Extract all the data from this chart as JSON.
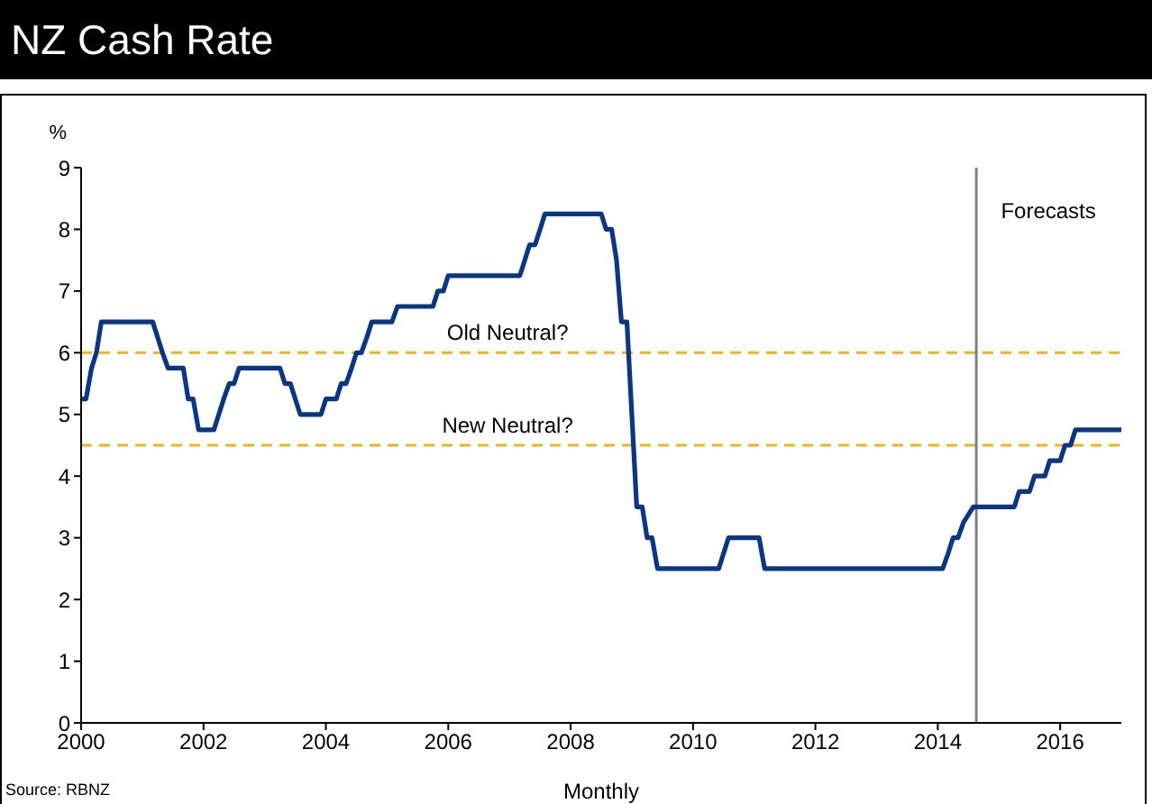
{
  "chart_data": {
    "type": "line",
    "title": "NZ Cash Rate",
    "xlabel": "Monthly",
    "ylabel": "%",
    "annotations": [
      "Source: RBNZ"
    ],
    "x": [
      2000.0,
      2000.08,
      2000.17,
      2000.25,
      2000.33,
      2001.17,
      2001.25,
      2001.33,
      2001.42,
      2001.67,
      2001.75,
      2001.83,
      2001.92,
      2002.17,
      2002.25,
      2002.33,
      2002.42,
      2002.5,
      2002.58,
      2003.25,
      2003.33,
      2003.42,
      2003.5,
      2003.58,
      2003.92,
      2004.0,
      2004.17,
      2004.25,
      2004.33,
      2004.42,
      2004.5,
      2004.58,
      2004.67,
      2004.75,
      2005.08,
      2005.17,
      2005.75,
      2005.83,
      2005.92,
      2006.0,
      2007.17,
      2007.25,
      2007.33,
      2007.42,
      2007.5,
      2007.58,
      2008.5,
      2008.58,
      2008.67,
      2008.75,
      2008.83,
      2008.92,
      2009.0,
      2009.08,
      2009.17,
      2009.25,
      2009.33,
      2009.42,
      2010.42,
      2010.5,
      2010.58,
      2011.08,
      2011.17,
      2014.08,
      2014.17,
      2014.25,
      2014.33,
      2014.42,
      2014.58,
      2015.25,
      2015.33,
      2015.5,
      2015.58,
      2015.75,
      2015.83,
      2016.0,
      2016.08,
      2016.17,
      2016.25,
      2017.0
    ],
    "series": [
      {
        "color": "#0a3682",
        "values": [
          5.25,
          5.25,
          5.75,
          6.0,
          6.5,
          6.5,
          6.25,
          6.0,
          5.75,
          5.75,
          5.25,
          5.25,
          4.75,
          4.75,
          5.0,
          5.25,
          5.5,
          5.5,
          5.75,
          5.75,
          5.5,
          5.5,
          5.25,
          5.0,
          5.0,
          5.25,
          5.25,
          5.5,
          5.5,
          5.75,
          6.0,
          6.0,
          6.25,
          6.5,
          6.5,
          6.75,
          6.75,
          7.0,
          7.0,
          7.25,
          7.25,
          7.5,
          7.75,
          7.75,
          8.0,
          8.25,
          8.25,
          8.0,
          8.0,
          7.5,
          6.5,
          6.5,
          5.0,
          3.5,
          3.5,
          3.0,
          3.0,
          2.5,
          2.5,
          2.75,
          3.0,
          3.0,
          2.5,
          2.5,
          2.75,
          3.0,
          3.0,
          3.25,
          3.5,
          3.5,
          3.75,
          3.75,
          4.0,
          4.0,
          4.25,
          4.25,
          4.5,
          4.5,
          4.75,
          4.75
        ]
      }
    ],
    "xlim": [
      2000,
      2017
    ],
    "xticks": [
      2000,
      2002,
      2004,
      2006,
      2008,
      2010,
      2012,
      2014,
      2016
    ],
    "ylim": [
      0,
      9
    ],
    "yticks": [
      0,
      1,
      2,
      3,
      4,
      5,
      6,
      7,
      8,
      9
    ],
    "grid": false,
    "marker": "none",
    "line_style": "solid",
    "ref_lines": [
      {
        "axis": "y",
        "value": 6,
        "label": "Old Neutral?",
        "color": "#f0b323",
        "line_style": "dashed"
      },
      {
        "axis": "y",
        "value": 4.5,
        "label": "New Neutral?",
        "color": "#f0b323",
        "line_style": "dashed"
      },
      {
        "axis": "x",
        "value": 2014.63,
        "label": "Forecasts",
        "color": "#808080",
        "line_style": "solid"
      }
    ]
  }
}
